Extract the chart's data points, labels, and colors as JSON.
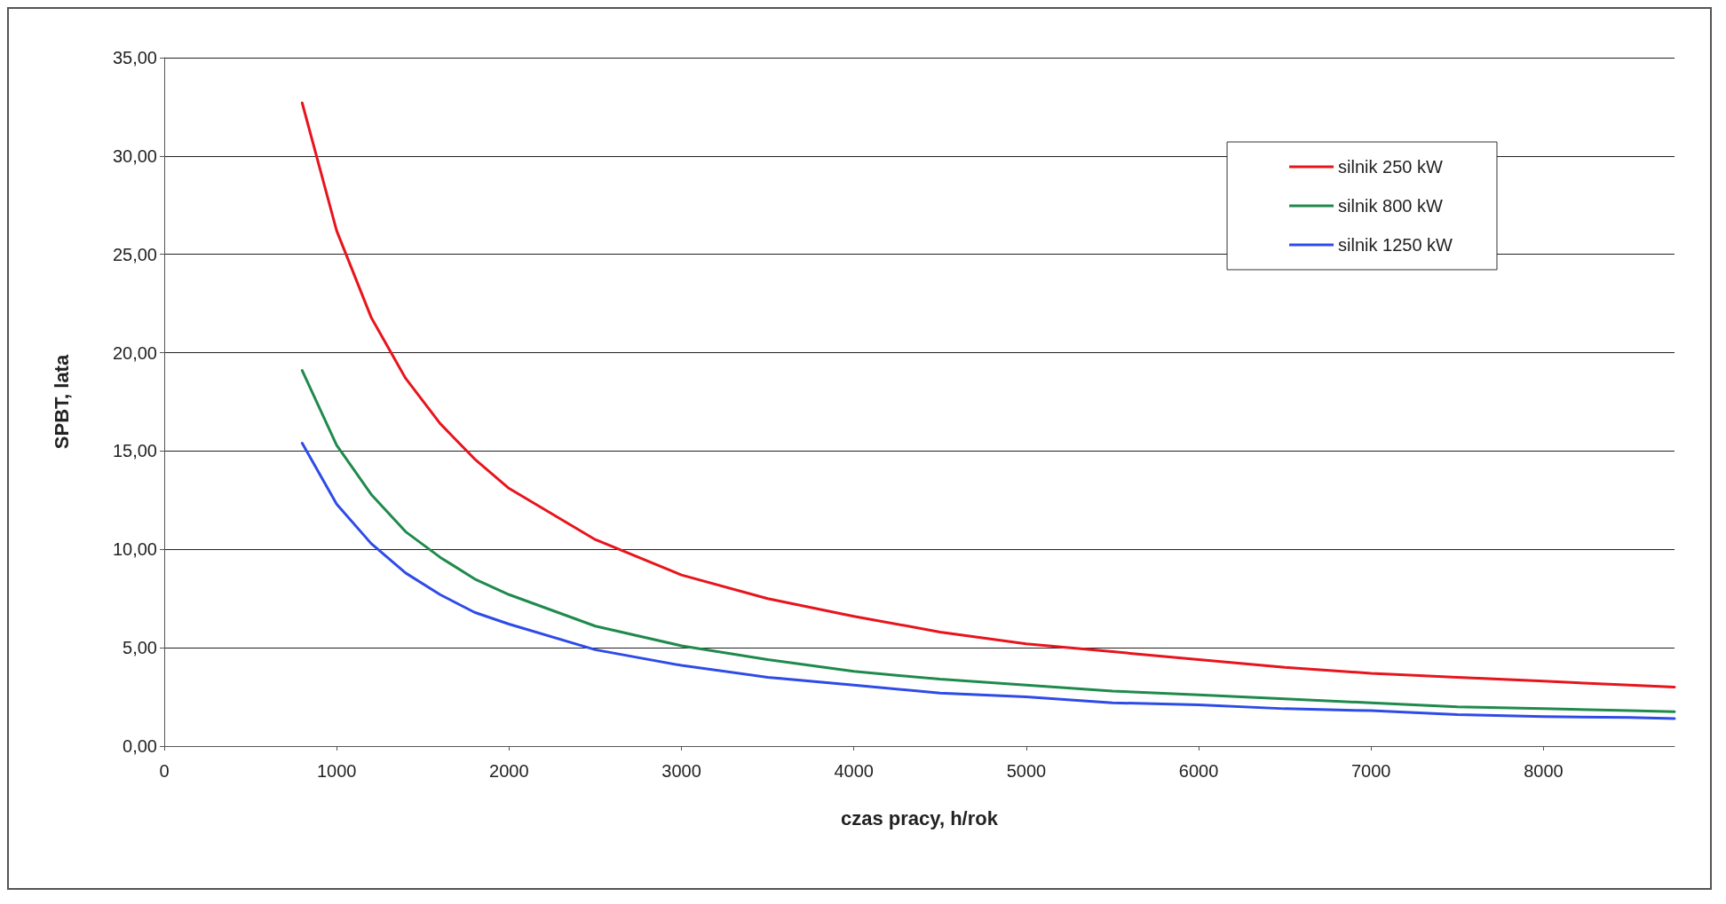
{
  "chart_data": {
    "type": "line",
    "xlabel": "czas pracy, h/rok",
    "ylabel": "SPBT, lata",
    "xlim": [
      0,
      8760
    ],
    "xticks": [
      0,
      1000,
      2000,
      3000,
      4000,
      5000,
      6000,
      7000,
      8000
    ],
    "ylim": [
      0,
      35
    ],
    "yticks": [
      {
        "value": 0,
        "label": "0,00"
      },
      {
        "value": 5,
        "label": "5,00"
      },
      {
        "value": 10,
        "label": "10,00"
      },
      {
        "value": 15,
        "label": "15,00"
      },
      {
        "value": 20,
        "label": "20,00"
      },
      {
        "value": 25,
        "label": "25,00"
      },
      {
        "value": 30,
        "label": "30,00"
      },
      {
        "value": 35,
        "label": "35,00"
      }
    ],
    "grid": "y",
    "legend": "top right",
    "marker": "none",
    "line_style": "solid",
    "x": [
      800,
      1000,
      1200,
      1400,
      1600,
      1800,
      2000,
      2500,
      3000,
      3500,
      4000,
      4500,
      5000,
      5500,
      6000,
      6500,
      7000,
      7500,
      8000,
      8500,
      8760
    ],
    "series": [
      {
        "name": "silnik 250 kW",
        "color": "#e8141c",
        "values": [
          32.7,
          26.2,
          21.8,
          18.7,
          16.4,
          14.6,
          13.1,
          10.5,
          8.7,
          7.5,
          6.6,
          5.8,
          5.2,
          4.8,
          4.4,
          4.0,
          3.7,
          3.5,
          3.3,
          3.1,
          3.0
        ]
      },
      {
        "name": "silnik 800 kW",
        "color": "#1f8a4c",
        "values": [
          19.1,
          15.3,
          12.8,
          10.9,
          9.6,
          8.5,
          7.7,
          6.1,
          5.1,
          4.4,
          3.8,
          3.4,
          3.1,
          2.8,
          2.6,
          2.4,
          2.2,
          2.0,
          1.9,
          1.8,
          1.75
        ]
      },
      {
        "name": "silnik 1250 kW",
        "color": "#2e4be8",
        "values": [
          15.4,
          12.3,
          10.3,
          8.8,
          7.7,
          6.8,
          6.2,
          4.9,
          4.1,
          3.5,
          3.1,
          2.7,
          2.5,
          2.2,
          2.1,
          1.9,
          1.8,
          1.6,
          1.5,
          1.45,
          1.4
        ]
      }
    ]
  }
}
